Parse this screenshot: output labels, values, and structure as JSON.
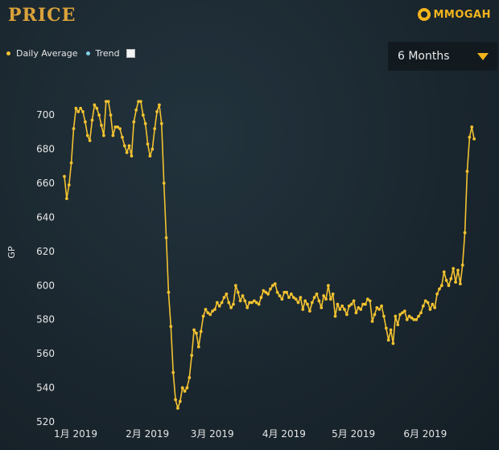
{
  "header": {
    "title": "PRICE",
    "logo_text": "MMOGAH",
    "logo_icon": "mmogah-logo-icon"
  },
  "legend": {
    "daily_average_label": "Daily Average",
    "trend_label": "Trend",
    "daily_average_color": "#f2c230",
    "trend_color": "#7fd0e8"
  },
  "range_select": {
    "value": "6 Months",
    "icon": "caret-down-icon",
    "accent": "#f2b51c"
  },
  "chart_data": {
    "type": "line",
    "title": "",
    "xlabel": "",
    "ylabel": "GP",
    "ylim": [
      520,
      710
    ],
    "yticks": [
      520,
      540,
      560,
      580,
      600,
      620,
      640,
      660,
      680,
      700
    ],
    "xticks": [
      {
        "x": 0,
        "label": "1月 2019"
      },
      {
        "x": 31,
        "label": "2月 2019"
      },
      {
        "x": 59,
        "label": "3月 2019"
      },
      {
        "x": 90,
        "label": "4月 2019"
      },
      {
        "x": 120,
        "label": "5月 2019"
      },
      {
        "x": 151,
        "label": "6月 2019"
      }
    ],
    "xlim": [
      0,
      178
    ],
    "grid": false,
    "legend_position": "top-left",
    "line_color": "#f2c230",
    "series": [
      {
        "name": "Daily Average",
        "x": [
          0,
          1,
          2,
          3,
          4,
          5,
          6,
          7,
          8,
          9,
          10,
          11,
          12,
          13,
          14,
          15,
          16,
          17,
          18,
          19,
          20,
          21,
          22,
          23,
          24,
          25,
          26,
          27,
          28,
          29,
          30,
          31,
          32,
          33,
          34,
          35,
          36,
          37,
          38,
          39,
          40,
          41,
          42,
          43,
          44,
          45,
          46,
          47,
          48,
          49,
          50,
          51,
          52,
          53,
          54,
          55,
          56,
          57,
          58,
          59,
          60,
          61,
          62,
          63,
          64,
          65,
          66,
          67,
          68,
          69,
          70,
          71,
          72,
          73,
          74,
          75,
          76,
          77,
          78,
          79,
          80,
          81,
          82,
          83,
          84,
          85,
          86,
          87,
          88,
          89,
          90,
          91,
          92,
          93,
          94,
          95,
          96,
          97,
          98,
          99,
          100,
          101,
          102,
          103,
          104,
          105,
          106,
          107,
          108,
          109,
          110,
          111,
          112,
          113,
          114,
          115,
          116,
          117,
          118,
          119,
          120,
          121,
          122,
          123,
          124,
          125,
          126,
          127,
          128,
          129,
          130,
          131,
          132,
          133,
          134,
          135,
          136,
          137,
          138,
          139,
          140,
          141,
          142,
          143,
          144,
          145,
          146,
          147,
          148,
          149,
          150,
          151,
          152,
          153,
          154,
          155,
          156,
          157,
          158,
          159,
          160,
          161,
          162,
          163,
          164,
          165,
          166,
          167,
          168,
          169,
          170,
          171,
          172,
          173,
          174,
          175,
          176,
          177
        ],
        "values": [
          664,
          651,
          659,
          672,
          692,
          704,
          702,
          704,
          702,
          696,
          688,
          685,
          697,
          706,
          704,
          700,
          694,
          688,
          708,
          708,
          700,
          688,
          693,
          693,
          692,
          687,
          682,
          678,
          682,
          676,
          696,
          703,
          708,
          708,
          700,
          695,
          683,
          676,
          680,
          692,
          702,
          706,
          695,
          660,
          628,
          596,
          576,
          549,
          533,
          528,
          532,
          540,
          538,
          540,
          546,
          559,
          574,
          572,
          564,
          573,
          582,
          586,
          584,
          583,
          585,
          586,
          590,
          588,
          590,
          593,
          595,
          590,
          587,
          589,
          600,
          596,
          591,
          594,
          591,
          587,
          590,
          590,
          591,
          590,
          589,
          593,
          597,
          596,
          595,
          598,
          600,
          601,
          596,
          594,
          592,
          596,
          596,
          593,
          595,
          593,
          592,
          590,
          593,
          586,
          591,
          589,
          585,
          590,
          593,
          595,
          591,
          587,
          594,
          592,
          600,
          592,
          595,
          582,
          589,
          586,
          588,
          586,
          583,
          588,
          589,
          591,
          584,
          587,
          586,
          589,
          589,
          592,
          591,
          579,
          583,
          587,
          586,
          588,
          582,
          575,
          568,
          574,
          566,
          582,
          577,
          583,
          584,
          585,
          580,
          582,
          581,
          580,
          580,
          582,
          584,
          588,
          591,
          590,
          586,
          589,
          587,
          595,
          598,
          600,
          608,
          603,
          600,
          604,
          610,
          602,
          609,
          601,
          612,
          631,
          667,
          687,
          693,
          686
        ]
      }
    ]
  }
}
